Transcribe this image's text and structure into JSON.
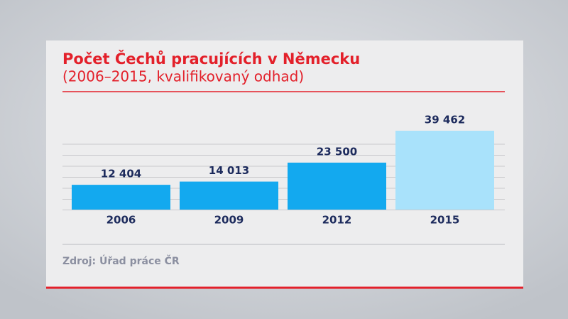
{
  "chart_data": {
    "type": "bar",
    "title": "Počet Čechů pracujících v Německu",
    "subtitle": "(2006–2015, kvalifikovaný odhad)",
    "categories": [
      "2006",
      "2009",
      "2012",
      "2015"
    ],
    "values": [
      12404,
      14013,
      23500,
      39462
    ],
    "value_labels": [
      "12 404",
      "14 013",
      "23 500",
      "39 462"
    ],
    "colors": [
      "#13a9ef",
      "#13a9ef",
      "#13a9ef",
      "#a9e2fb"
    ],
    "ylim": [
      0,
      40000
    ],
    "source": "Zdroj: Úřad práce ČR"
  }
}
